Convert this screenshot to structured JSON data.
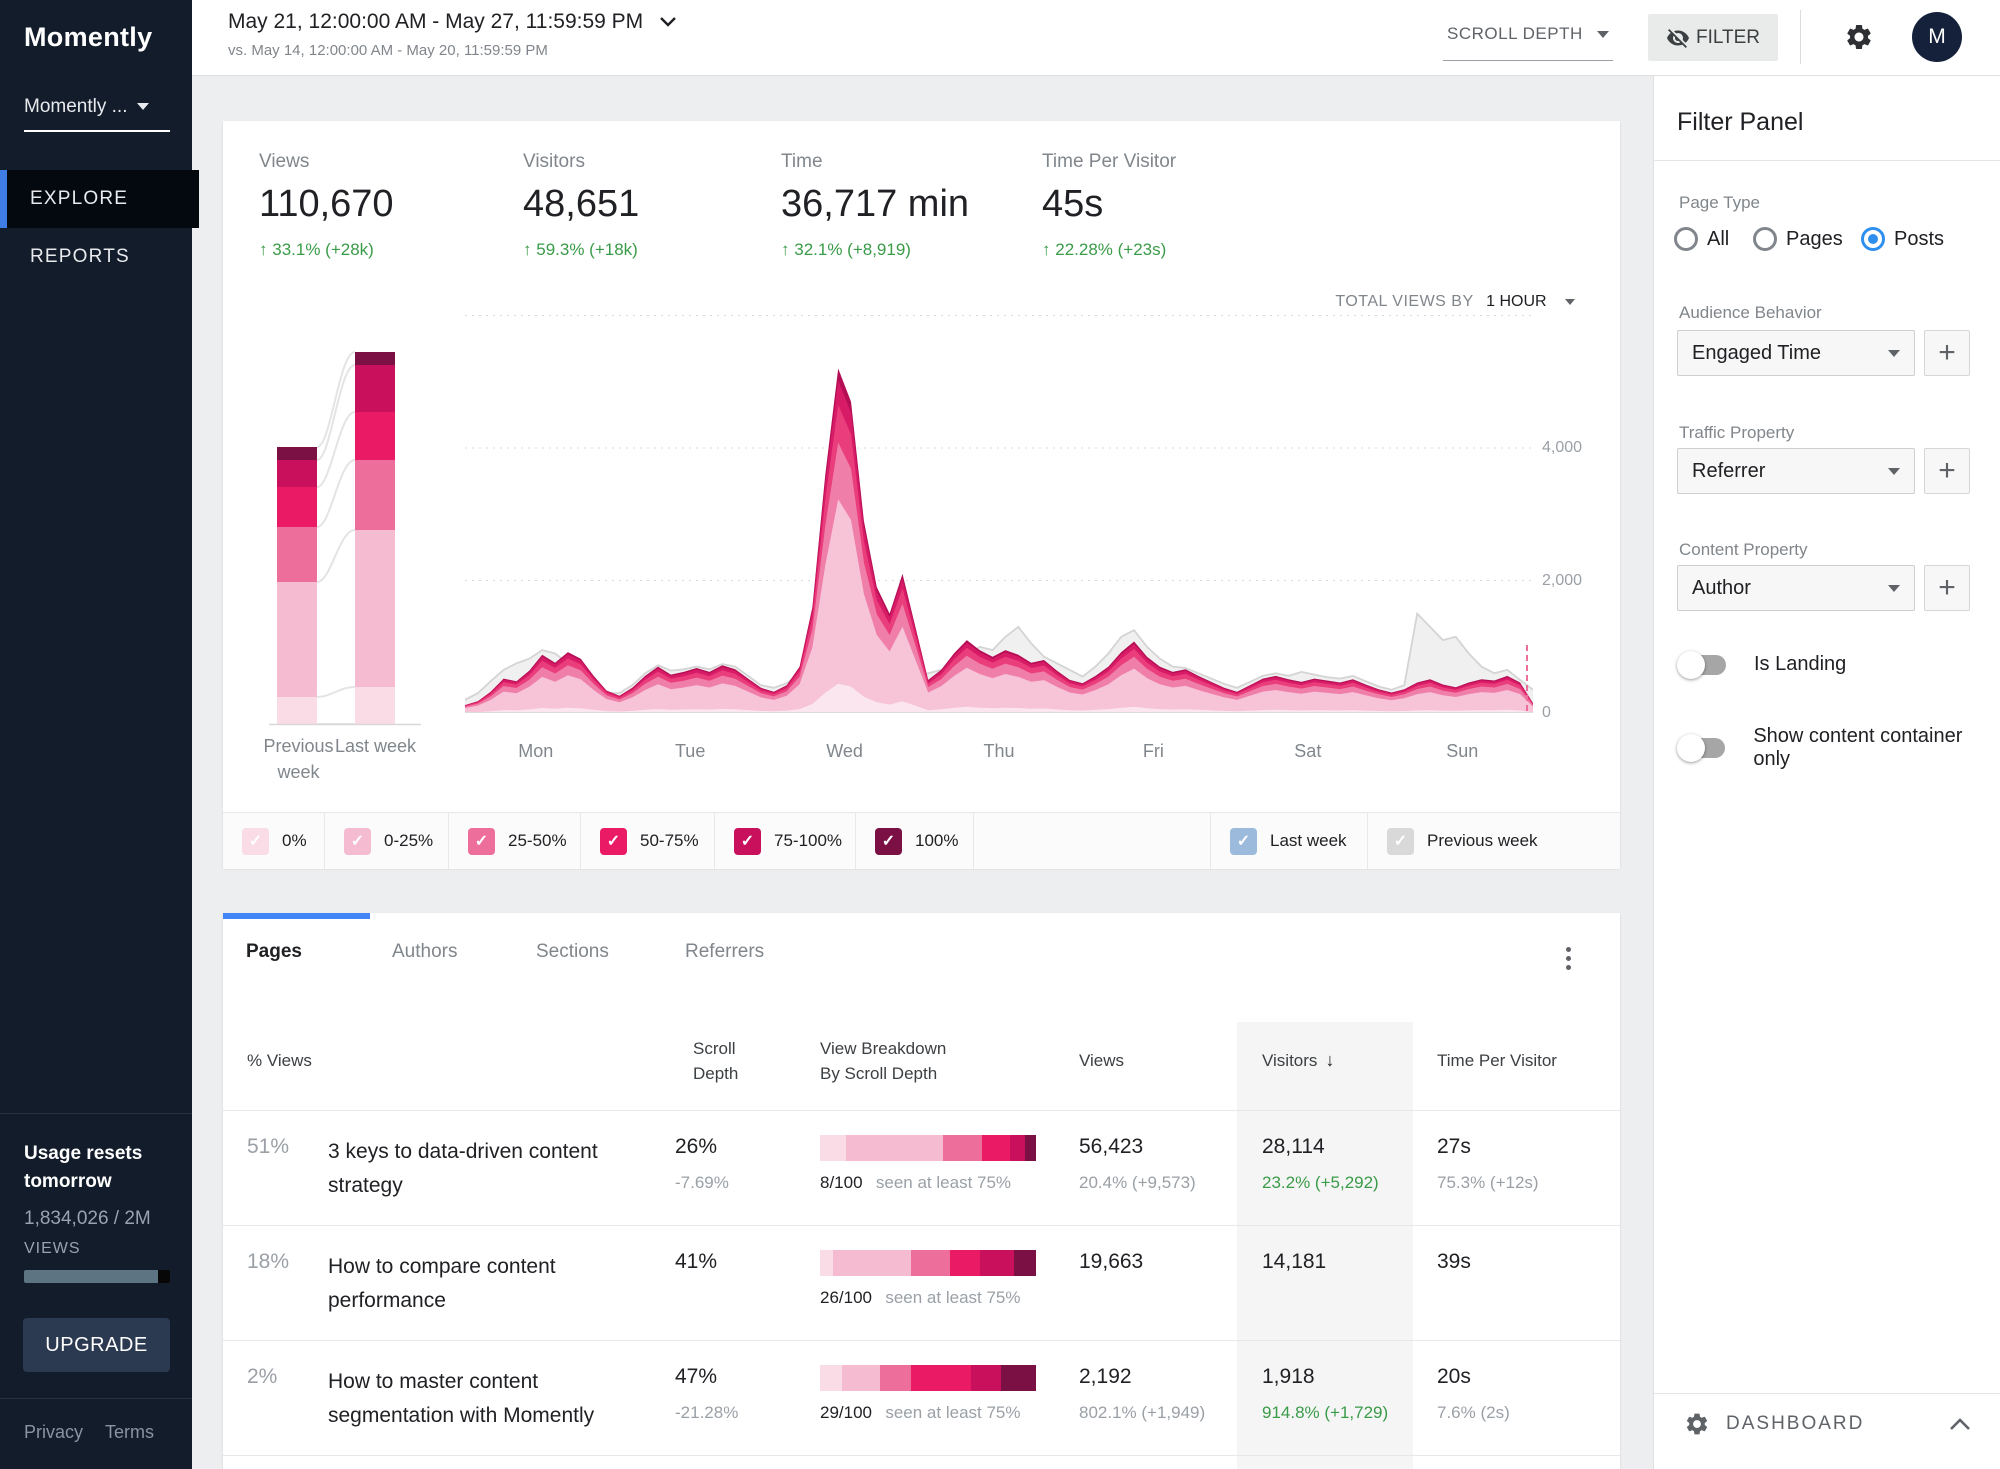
{
  "palette": {
    "accent_blue": "#4285F4",
    "green": "#3A9B48",
    "sidebar_bg": "#131C2B",
    "scroll_depth_colors": [
      "#FADCE6",
      "#F5BCD1",
      "#EE6E9B",
      "#EB1A64",
      "#C8105C",
      "#7A1044"
    ],
    "last_week_blue": "#9CBBDC",
    "previous_week_gray": "#D9D9D9"
  },
  "sidebar": {
    "logo": "Momently",
    "account": "Momently ...",
    "nav": [
      {
        "label": "EXPLORE"
      },
      {
        "label": "REPORTS"
      }
    ],
    "usage_title": "Usage resets tomorrow",
    "usage_count": "1,834,026 / 2M",
    "usage_unit": "VIEWS",
    "usage_pct": 91.7,
    "upgrade": "UPGRADE",
    "privacy": "Privacy",
    "terms": "Terms"
  },
  "topbar": {
    "date_range": "May 21, 12:00:00 AM - May 27, 11:59:59 PM",
    "compare": "vs. May 14, 12:00:00 AM - May 20, 11:59:59 PM",
    "metric": "SCROLL DEPTH",
    "filter": "FILTER",
    "avatar": "M"
  },
  "stats": [
    {
      "label": "Views",
      "value": "110,670",
      "change": "33.1% (+28k)"
    },
    {
      "label": "Visitors",
      "value": "48,651",
      "change": "59.3% (+18k)"
    },
    {
      "label": "Time",
      "value": "36,717 min",
      "change": "32.1% (+8,919)"
    },
    {
      "label": "Time Per Visitor",
      "value": "45s",
      "change": "22.28% (+23s)"
    }
  ],
  "chart": {
    "control_prefix": "TOTAL VIEWS BY",
    "interval": "1 HOUR",
    "days": [
      "Mon",
      "Tue",
      "Wed",
      "Thu",
      "Fri",
      "Sat",
      "Sun"
    ],
    "y_labels": [
      {
        "v": 4000,
        "t": "4,000"
      },
      {
        "v": 2000,
        "t": "2,000"
      },
      {
        "v": 0,
        "t": "0"
      }
    ],
    "prev_label_line1": "Previous",
    "prev_label_line2": "week",
    "last_label": "Last week"
  },
  "chart_data": {
    "type": "area",
    "title": "Total views by 1 hour, May 21 - May 27 vs previous week",
    "y_max": 6385,
    "grid_values": [
      6000,
      4000,
      2000
    ],
    "points_per_day": 12,
    "total_views": [
      120,
      180,
      320,
      520,
      480,
      640,
      880,
      760,
      920,
      820,
      560,
      340,
      260,
      380,
      560,
      700,
      580,
      620,
      680,
      620,
      720,
      660,
      520,
      380,
      320,
      420,
      700,
      1600,
      3600,
      5200,
      4700,
      2900,
      1900,
      1500,
      2100,
      1300,
      500,
      650,
      900,
      1100,
      950,
      850,
      950,
      880,
      760,
      800,
      640,
      500,
      450,
      560,
      700,
      920,
      1080,
      850,
      700,
      620,
      660,
      560,
      470,
      380,
      320,
      420,
      520,
      560,
      510,
      470,
      520,
      490,
      460,
      510,
      430,
      360,
      310,
      360,
      460,
      510,
      430,
      390,
      460,
      510,
      490,
      560,
      460,
      150
    ],
    "previous_week": [
      200,
      300,
      480,
      650,
      750,
      820,
      950,
      900,
      750,
      560,
      400,
      300,
      300,
      420,
      600,
      720,
      640,
      660,
      700,
      660,
      740,
      700,
      560,
      420,
      380,
      450,
      600,
      800,
      900,
      850,
      800,
      750,
      700,
      680,
      650,
      550,
      600,
      650,
      700,
      850,
      1000,
      950,
      1150,
      1300,
      1050,
      850,
      750,
      650,
      550,
      700,
      900,
      1150,
      1250,
      1000,
      820,
      700,
      680,
      600,
      520,
      440,
      380,
      470,
      560,
      600,
      560,
      620,
      580,
      540,
      520,
      560,
      480,
      400,
      350,
      420,
      1500,
      1300,
      1100,
      1150,
      900,
      700,
      600,
      650,
      500,
      350
    ],
    "layers": [
      {
        "frac": 1.0,
        "color": "#B50E55"
      },
      {
        "frac": 0.965,
        "color": "#D81B66"
      },
      {
        "frac": 0.895,
        "color": "#EA3D7C"
      },
      {
        "frac": 0.785,
        "color": "#EF7FA8"
      },
      {
        "frac": 0.62,
        "color": "#F7C3D7"
      },
      {
        "frac": 0.085,
        "color": "#FBE6EF"
      }
    ],
    "bars": {
      "previous_week": [
        13,
        27,
        40,
        55,
        115,
        27
      ],
      "last_week": [
        13,
        47,
        48,
        70,
        157,
        37
      ],
      "colors_top_down": [
        "#7A1044",
        "#C8105C",
        "#EB1A64",
        "#EE6E9B",
        "#F5BCD1",
        "#FADCE6"
      ]
    }
  },
  "legend": {
    "scroll_depths": [
      {
        "label": "0%",
        "color": "#FADCE6"
      },
      {
        "label": "0-25%",
        "color": "#F5BCD1"
      },
      {
        "label": "25-50%",
        "color": "#EE6E9B"
      },
      {
        "label": "50-75%",
        "color": "#EB1A64"
      },
      {
        "label": "75-100%",
        "color": "#C8105C"
      },
      {
        "label": "100%",
        "color": "#7A1044"
      }
    ],
    "weeks": [
      {
        "label": "Last week",
        "color": "#9CBBDC"
      },
      {
        "label": "Previous week",
        "color": "#D9D9D9"
      }
    ]
  },
  "table": {
    "tabs": [
      "Pages",
      "Authors",
      "Sections",
      "Referrers"
    ],
    "columns": {
      "pct": "% Views",
      "scroll1": "Scroll",
      "scroll2": "Depth",
      "break1": "View Breakdown",
      "break2": "By Scroll Depth",
      "views": "Views",
      "visitors": "Visitors",
      "time": "Time Per Visitor"
    },
    "rows": [
      {
        "pct": "51%",
        "title": "3 keys to data-driven content strategy",
        "scroll": "26%",
        "scroll_sub": "-7.69%",
        "seen": "8/100",
        "seen_label": "seen at least 75%",
        "views": "56,423",
        "views_sub": "20.4% (+9,573)",
        "visitors": "28,114",
        "visitors_sub": "23.2% (+5,292)",
        "time": "27s",
        "time_sub": "75.3% (+12s)",
        "breakdown": [
          12,
          45,
          18,
          13,
          7,
          5
        ]
      },
      {
        "pct": "18%",
        "title": "How to compare content performance",
        "scroll": "41%",
        "scroll_sub": "",
        "seen": "26/100",
        "seen_label": "seen at least 75%",
        "views": "19,663",
        "views_sub": "",
        "visitors": "14,181",
        "visitors_sub": "",
        "time": "39s",
        "time_sub": "",
        "breakdown": [
          6,
          36,
          18,
          14,
          16,
          10
        ]
      },
      {
        "pct": "2%",
        "title": "How to master content segmentation with Momently",
        "scroll": "47%",
        "scroll_sub": "-21.28%",
        "seen": "29/100",
        "seen_label": "seen at least 75%",
        "views": "2,192",
        "views_sub": "802.1% (+1,949)",
        "visitors": "1,918",
        "visitors_sub": "914.8% (+1,729)",
        "time": "20s",
        "time_sub": "7.6% (2s)",
        "breakdown": [
          10,
          18,
          14,
          28,
          14,
          16
        ]
      }
    ]
  },
  "filter_panel": {
    "title": "Filter Panel",
    "page_type_label": "Page Type",
    "radios": [
      {
        "label": "All",
        "selected": false
      },
      {
        "label": "Pages",
        "selected": false
      },
      {
        "label": "Posts",
        "selected": true
      }
    ],
    "audience_label": "Audience Behavior",
    "audience_value": "Engaged Time",
    "traffic_label": "Traffic Property",
    "traffic_value": "Referrer",
    "content_label": "Content Property",
    "content_value": "Author",
    "toggle1": "Is Landing",
    "toggle2": "Show content container only",
    "dashboard": "DASHBOARD"
  }
}
